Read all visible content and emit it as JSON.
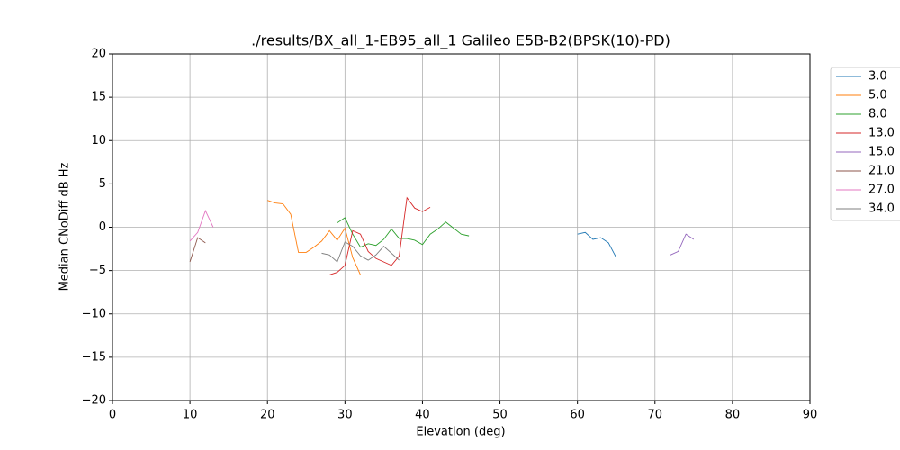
{
  "chart_data": {
    "type": "line",
    "title": "./results/BX_all_1-EB95_all_1 Galileo E5B-B2(BPSK(10)-PD)",
    "xlabel": "Elevation (deg)",
    "ylabel": "Median CNoDiff dB Hz",
    "xlim": [
      0,
      90
    ],
    "xticks": [
      0,
      10,
      20,
      30,
      40,
      50,
      60,
      70,
      80,
      90
    ],
    "ylim": [
      -20,
      20
    ],
    "yticks": [
      {
        "value": -20,
        "label": "−20"
      },
      {
        "value": -15,
        "label": "−15"
      },
      {
        "value": -10,
        "label": "−10"
      },
      {
        "value": -5,
        "label": "−5"
      },
      0,
      5,
      10,
      15,
      20
    ],
    "grid": true,
    "legend": "outside right",
    "series": [
      {
        "name": "3.0",
        "color": "#1f77b4",
        "x": [
          60,
          61,
          62,
          63,
          64,
          65
        ],
        "values": [
          -0.8,
          -0.6,
          -1.4,
          -1.2,
          -1.8,
          -3.5
        ]
      },
      {
        "name": "5.0",
        "color": "#ff7f0e",
        "x": [
          20,
          21,
          22,
          23,
          24,
          25,
          26,
          27,
          28,
          29,
          30,
          31,
          32
        ],
        "values": [
          3.1,
          2.8,
          2.7,
          1.5,
          -2.9,
          -2.9,
          -2.3,
          -1.6,
          -0.4,
          -1.5,
          -0.1,
          -3.5,
          -5.5
        ]
      },
      {
        "name": "8.0",
        "color": "#2ca02c",
        "x": [
          29,
          30,
          31,
          32,
          33,
          34,
          35,
          36,
          37,
          38,
          39,
          40,
          41,
          42,
          43,
          44,
          45,
          46
        ],
        "values": [
          0.5,
          1.1,
          -0.8,
          -2.3,
          -1.9,
          -2.1,
          -1.4,
          -0.2,
          -1.3,
          -1.3,
          -1.5,
          -2.0,
          -0.8,
          -0.2,
          0.6,
          -0.1,
          -0.8,
          -1.0
        ]
      },
      {
        "name": "13.0",
        "color": "#d62728",
        "x": [
          28,
          29,
          30,
          31,
          32,
          33,
          34,
          35,
          36,
          37,
          38,
          39,
          40,
          41
        ],
        "values": [
          -5.5,
          -5.2,
          -4.4,
          -0.4,
          -0.8,
          -2.8,
          -3.6,
          -4.0,
          -4.4,
          -3.3,
          3.4,
          2.2,
          1.8,
          2.3
        ]
      },
      {
        "name": "15.0",
        "color": "#9467bd",
        "x": [
          72,
          73,
          74,
          75
        ],
        "values": [
          -3.2,
          -2.8,
          -0.8,
          -1.4
        ]
      },
      {
        "name": "21.0",
        "color": "#8c564b",
        "x": [
          10,
          11,
          12
        ],
        "values": [
          -4.0,
          -1.2,
          -1.8
        ]
      },
      {
        "name": "27.0",
        "color": "#e377c2",
        "x": [
          10,
          11,
          12,
          13
        ],
        "values": [
          -1.6,
          -0.6,
          1.9,
          0.0
        ]
      },
      {
        "name": "34.0",
        "color": "#7f7f7f",
        "x": [
          27,
          28,
          29,
          30,
          31,
          32,
          33,
          34,
          35,
          36,
          37
        ],
        "values": [
          -3.0,
          -3.2,
          -4.0,
          -1.7,
          -2.2,
          -3.3,
          -3.8,
          -3.2,
          -2.2,
          -3.0,
          -3.8
        ]
      }
    ]
  }
}
